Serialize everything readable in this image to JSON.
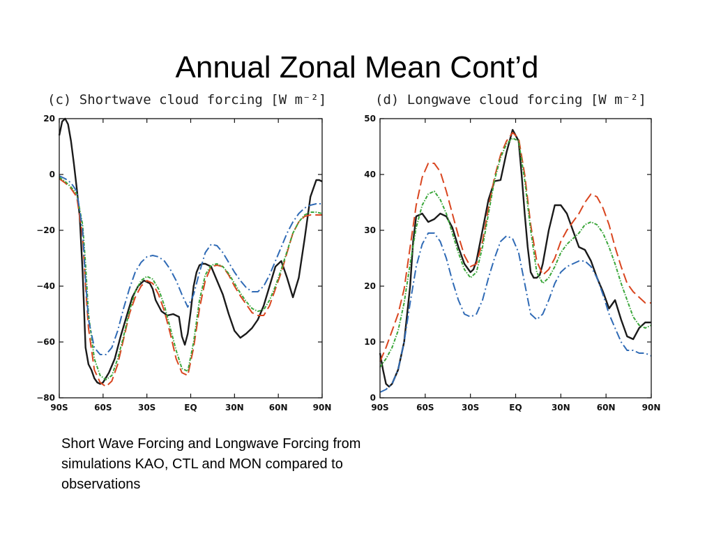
{
  "slide": {
    "title": "Annual Zonal Mean Cont’d",
    "caption": "Short Wave Forcing and Longwave Forcing from simulations KAO, CTL and MON compared to observations"
  },
  "chart_data": [
    {
      "type": "line",
      "title": "(c) Shortwave cloud forcing [W m⁻²]",
      "xlabel": "",
      "ylabel": "",
      "xlim": [
        -90,
        90
      ],
      "ylim": [
        -80,
        20
      ],
      "xticks": [
        -90,
        -60,
        -30,
        0,
        30,
        60,
        90
      ],
      "xticklabels": [
        "90S",
        "60S",
        "30S",
        "EQ",
        "30N",
        "60N",
        "90N"
      ],
      "yticks": [
        -80,
        -60,
        -40,
        -20,
        0,
        20
      ],
      "yticklabels": [
        "−80",
        "−60",
        "−40",
        "−20",
        "0",
        "20"
      ],
      "grid": false,
      "legend": "none",
      "series": [
        {
          "color": "#1a1a1a",
          "dash": "solid",
          "x": [
            -90,
            -88,
            -86,
            -84,
            -82,
            -80,
            -78,
            -76,
            -74,
            -72,
            -70,
            -68,
            -66,
            -64,
            -62,
            -60,
            -56,
            -52,
            -48,
            -44,
            -40,
            -36,
            -32,
            -28,
            -26,
            -24,
            -20,
            -16,
            -12,
            -8,
            -6,
            -4,
            -2,
            0,
            2,
            4,
            6,
            8,
            10,
            14,
            18,
            22,
            26,
            30,
            34,
            38,
            42,
            46,
            50,
            54,
            58,
            62,
            66,
            70,
            74,
            78,
            82,
            86,
            88,
            90
          ],
          "y": [
            14,
            19,
            20,
            18,
            12,
            4,
            -5,
            -15,
            -35,
            -62,
            -68,
            -70,
            -73,
            -74.5,
            -75,
            -74.5,
            -71,
            -66,
            -58,
            -51,
            -44,
            -40,
            -38,
            -39,
            -41,
            -45,
            -49,
            -50.5,
            -50,
            -51,
            -58,
            -61,
            -57,
            -49,
            -40,
            -35,
            -32.5,
            -32,
            -32,
            -33,
            -38,
            -43,
            -50,
            -56,
            -58.5,
            -57,
            -55,
            -52,
            -47,
            -40,
            -33,
            -31,
            -37,
            -44,
            -37,
            -23,
            -8,
            -2,
            -2,
            -2.5
          ]
        },
        {
          "color": "#d9451f",
          "dash": "long",
          "x": [
            -90,
            -86,
            -82,
            -78,
            -74,
            -72,
            -70,
            -66,
            -62,
            -58,
            -54,
            -50,
            -46,
            -42,
            -38,
            -34,
            -30,
            -26,
            -22,
            -18,
            -14,
            -10,
            -6,
            -2,
            2,
            6,
            10,
            14,
            18,
            22,
            26,
            30,
            34,
            38,
            42,
            46,
            50,
            54,
            58,
            62,
            66,
            70,
            74,
            78,
            82,
            86,
            90
          ],
          "y": [
            -1.5,
            -3,
            -5,
            -8,
            -22,
            -40,
            -55,
            -70,
            -74.5,
            -76,
            -74,
            -68,
            -59,
            -50,
            -44,
            -40,
            -38,
            -39,
            -43,
            -49,
            -57,
            -66,
            -71,
            -72,
            -62,
            -48,
            -38,
            -33,
            -32.5,
            -33,
            -36,
            -40,
            -43.5,
            -46.5,
            -49.5,
            -50.5,
            -50.5,
            -47,
            -41,
            -35,
            -28,
            -21,
            -17,
            -15,
            -14.5,
            -14.5,
            -14.5
          ]
        },
        {
          "color": "#3aa63a",
          "dash": "dotdash",
          "x": [
            -90,
            -86,
            -82,
            -78,
            -74,
            -72,
            -70,
            -66,
            -62,
            -58,
            -54,
            -50,
            -46,
            -42,
            -38,
            -34,
            -30,
            -26,
            -22,
            -18,
            -14,
            -10,
            -6,
            -2,
            2,
            6,
            10,
            14,
            18,
            22,
            26,
            30,
            34,
            38,
            42,
            46,
            50,
            54,
            58,
            62,
            66,
            70,
            74,
            78,
            82,
            86,
            90
          ],
          "y": [
            -1,
            -2.5,
            -4.5,
            -7,
            -18,
            -32,
            -50,
            -66,
            -72,
            -73.5,
            -72,
            -66,
            -58,
            -49,
            -42,
            -38,
            -36.5,
            -37.5,
            -41,
            -47,
            -55,
            -63,
            -69.5,
            -70.5,
            -60,
            -45,
            -36,
            -32.5,
            -32,
            -33,
            -35.5,
            -39,
            -42.5,
            -45.5,
            -48,
            -49,
            -48.5,
            -45,
            -40,
            -34,
            -27.5,
            -21,
            -17,
            -14.5,
            -13.5,
            -13.5,
            -14
          ]
        },
        {
          "color": "#2f6ab5",
          "dash": "dashdot",
          "x": [
            -90,
            -86,
            -82,
            -78,
            -74,
            -72,
            -70,
            -66,
            -62,
            -58,
            -54,
            -50,
            -46,
            -42,
            -38,
            -34,
            -30,
            -26,
            -22,
            -18,
            -14,
            -10,
            -6,
            -2,
            2,
            6,
            10,
            14,
            18,
            22,
            26,
            30,
            34,
            38,
            42,
            46,
            50,
            54,
            58,
            62,
            66,
            70,
            74,
            78,
            82,
            86,
            90
          ],
          "y": [
            -0.5,
            -1.5,
            -3,
            -6,
            -20,
            -38,
            -52,
            -62,
            -64.5,
            -64.5,
            -62,
            -56,
            -48,
            -41,
            -35,
            -31.5,
            -29.5,
            -29,
            -29.5,
            -31,
            -34,
            -38,
            -43,
            -47.5,
            -43,
            -35,
            -28,
            -25,
            -25.5,
            -28,
            -31.5,
            -35,
            -38,
            -40.5,
            -42,
            -42,
            -40,
            -36,
            -31,
            -26,
            -21,
            -17,
            -14,
            -12,
            -11,
            -10.5,
            -10.5
          ]
        }
      ]
    },
    {
      "type": "line",
      "title": "(d) Longwave cloud forcing [W m⁻²]",
      "xlabel": "",
      "ylabel": "",
      "xlim": [
        -90,
        90
      ],
      "ylim": [
        0,
        50
      ],
      "xticks": [
        -90,
        -60,
        -30,
        0,
        30,
        60,
        90
      ],
      "xticklabels": [
        "90S",
        "60S",
        "30S",
        "EQ",
        "30N",
        "60N",
        "90N"
      ],
      "yticks": [
        0,
        10,
        20,
        30,
        40,
        50
      ],
      "yticklabels": [
        "0",
        "10",
        "20",
        "30",
        "40",
        "50"
      ],
      "grid": false,
      "legend": "none",
      "series": [
        {
          "color": "#1a1a1a",
          "dash": "solid",
          "x": [
            -90,
            -88,
            -86,
            -84,
            -82,
            -78,
            -74,
            -70,
            -68,
            -66,
            -62,
            -58,
            -54,
            -50,
            -46,
            -42,
            -38,
            -34,
            -30,
            -28,
            -26,
            -22,
            -18,
            -14,
            -10,
            -6,
            -2,
            2,
            4,
            6,
            8,
            10,
            12,
            14,
            16,
            18,
            20,
            22,
            26,
            30,
            34,
            38,
            42,
            46,
            50,
            54,
            58,
            62,
            66,
            70,
            74,
            78,
            80,
            82,
            86,
            90
          ],
          "y": [
            8,
            5,
            2.5,
            2,
            2.5,
            5,
            10,
            20,
            28,
            32.5,
            33,
            31.5,
            32,
            33,
            32.5,
            30.5,
            27,
            24,
            22.5,
            23,
            24.5,
            30,
            35.5,
            38.8,
            39,
            44,
            48,
            46,
            40,
            33,
            27,
            22.5,
            21.5,
            21.5,
            22,
            24,
            27,
            30,
            34.5,
            34.5,
            33,
            30,
            27,
            26.5,
            24.5,
            21.5,
            19,
            16,
            17.5,
            14,
            11,
            10.5,
            11.5,
            12.5,
            13.5,
            13.5
          ]
        },
        {
          "color": "#d9451f",
          "dash": "long",
          "x": [
            -90,
            -86,
            -82,
            -78,
            -74,
            -70,
            -66,
            -62,
            -58,
            -54,
            -50,
            -46,
            -42,
            -38,
            -34,
            -30,
            -26,
            -22,
            -18,
            -14,
            -10,
            -6,
            -2,
            2,
            6,
            10,
            14,
            18,
            22,
            26,
            30,
            34,
            38,
            42,
            46,
            50,
            54,
            58,
            62,
            66,
            70,
            74,
            78,
            82,
            86,
            90
          ],
          "y": [
            6.5,
            9,
            12,
            15,
            19.5,
            27,
            34.5,
            39.5,
            42,
            42,
            40.5,
            37,
            33,
            29,
            25.5,
            23.5,
            24,
            28,
            34,
            39.5,
            43.5,
            46,
            47.5,
            46.5,
            40,
            31,
            24.5,
            22,
            23,
            25,
            28,
            30,
            31.5,
            33,
            35,
            36.5,
            36,
            34,
            31,
            27,
            23.5,
            20.5,
            19,
            18,
            17,
            17
          ]
        },
        {
          "color": "#3aa63a",
          "dash": "dotdash",
          "x": [
            -90,
            -86,
            -82,
            -78,
            -74,
            -70,
            -66,
            -62,
            -58,
            -54,
            -50,
            -46,
            -42,
            -38,
            -34,
            -30,
            -26,
            -22,
            -18,
            -14,
            -10,
            -6,
            -2,
            2,
            6,
            10,
            14,
            18,
            22,
            26,
            30,
            34,
            38,
            42,
            46,
            50,
            54,
            58,
            62,
            66,
            70,
            74,
            78,
            82,
            86,
            90
          ],
          "y": [
            5.5,
            7,
            9,
            12,
            17,
            24,
            30.5,
            34.5,
            36.5,
            37,
            35.5,
            33,
            29.5,
            26,
            23,
            21.5,
            22.5,
            27,
            33,
            39,
            43,
            45.5,
            46.5,
            46,
            39,
            30,
            22.5,
            20.5,
            21.5,
            23.5,
            26,
            27.5,
            28.5,
            29.5,
            31,
            31.5,
            31,
            29.5,
            27,
            24,
            20.5,
            17.5,
            14.5,
            13,
            12.5,
            13
          ]
        },
        {
          "color": "#2f6ab5",
          "dash": "dashdot",
          "x": [
            -90,
            -86,
            -82,
            -78,
            -74,
            -70,
            -66,
            -62,
            -58,
            -54,
            -50,
            -46,
            -42,
            -38,
            -34,
            -30,
            -26,
            -22,
            -18,
            -14,
            -10,
            -6,
            -2,
            2,
            6,
            10,
            14,
            18,
            22,
            26,
            30,
            34,
            38,
            42,
            46,
            50,
            54,
            58,
            62,
            66,
            70,
            74,
            78,
            82,
            86,
            90
          ],
          "y": [
            1,
            1.5,
            2.5,
            5,
            10,
            17,
            23.5,
            27.5,
            29.5,
            29.5,
            28,
            25,
            21,
            17.5,
            15,
            14.5,
            15,
            17.5,
            21.5,
            25,
            28,
            29,
            28.5,
            26,
            20.5,
            15,
            14,
            15,
            17.5,
            20.5,
            22.5,
            23.5,
            24,
            24.5,
            24.5,
            23.5,
            21.5,
            18.5,
            15,
            12.5,
            10,
            8.5,
            8.5,
            8,
            8,
            7.5
          ]
        }
      ]
    }
  ]
}
